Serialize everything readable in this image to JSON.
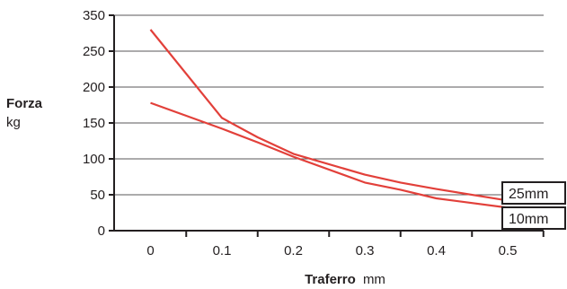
{
  "chart_data": {
    "type": "line",
    "x_ticks": [
      "0",
      "0.1",
      "0.2",
      "0.3",
      "0.4",
      "0.5"
    ],
    "y_ticks": [
      "0",
      "50",
      "100",
      "150",
      "200",
      "250",
      "350"
    ],
    "ylabel": {
      "bold": "Forza",
      "unit": "kg"
    },
    "xlabel": {
      "bold": "Traferro",
      "unit": "mm"
    },
    "xlim": [
      -0.05,
      0.55
    ],
    "ylim": [
      0,
      300
    ],
    "grid": true,
    "series": [
      {
        "name": "25mm",
        "color": "#e2403a",
        "points": [
          [
            0,
            280
          ],
          [
            0.1,
            157
          ],
          [
            0.15,
            130
          ],
          [
            0.2,
            107
          ],
          [
            0.3,
            78
          ],
          [
            0.35,
            67
          ],
          [
            0.4,
            58
          ],
          [
            0.5,
            42
          ]
        ]
      },
      {
        "name": "10mm",
        "color": "#e2403a",
        "points": [
          [
            0,
            178
          ],
          [
            0.05,
            160
          ],
          [
            0.1,
            142
          ],
          [
            0.15,
            123
          ],
          [
            0.2,
            103
          ],
          [
            0.3,
            67
          ],
          [
            0.35,
            57
          ],
          [
            0.4,
            45
          ],
          [
            0.5,
            32
          ]
        ]
      }
    ]
  }
}
